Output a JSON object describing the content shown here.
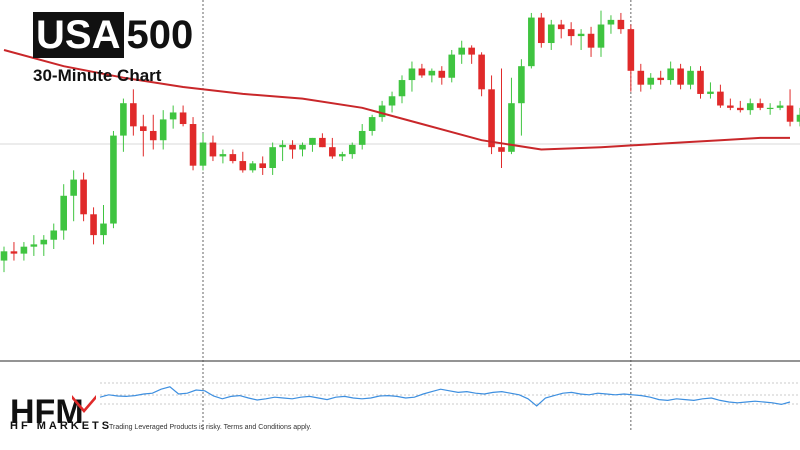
{
  "header": {
    "symbol_boxed": "USA",
    "symbol_rest": "500",
    "subtitle": "30-Minute Chart"
  },
  "footer": {
    "brand_name": "HF MARKETS",
    "logo_text": "HFM",
    "disclaimer": "Trading Leveraged Products is risky. Terms and Conditions apply."
  },
  "colors": {
    "up": "#3fc440",
    "down": "#e02a2a",
    "moving_average": "#c9272a",
    "indicator": "#3d8fe0",
    "grid": "#d9d9d9",
    "separator": "#555555"
  },
  "chart_data": {
    "type": "candlestick",
    "price_range": [
      0,
      100
    ],
    "candles": [
      {
        "o": 10,
        "h": 16,
        "l": 5,
        "c": 14
      },
      {
        "o": 14,
        "h": 18,
        "l": 10,
        "c": 13
      },
      {
        "o": 13,
        "h": 18,
        "l": 10,
        "c": 16
      },
      {
        "o": 16,
        "h": 21,
        "l": 12,
        "c": 17
      },
      {
        "o": 17,
        "h": 21,
        "l": 12,
        "c": 19
      },
      {
        "o": 19,
        "h": 26,
        "l": 15,
        "c": 23
      },
      {
        "o": 23,
        "h": 43,
        "l": 19,
        "c": 38
      },
      {
        "o": 38,
        "h": 49,
        "l": 27,
        "c": 45
      },
      {
        "o": 45,
        "h": 48,
        "l": 27,
        "c": 30
      },
      {
        "o": 30,
        "h": 33,
        "l": 17,
        "c": 21
      },
      {
        "o": 21,
        "h": 34,
        "l": 17,
        "c": 26
      },
      {
        "o": 26,
        "h": 66,
        "l": 24,
        "c": 64
      },
      {
        "o": 64,
        "h": 80,
        "l": 57,
        "c": 78
      },
      {
        "o": 78,
        "h": 84,
        "l": 64,
        "c": 68
      },
      {
        "o": 68,
        "h": 73,
        "l": 55,
        "c": 66
      },
      {
        "o": 66,
        "h": 73,
        "l": 58,
        "c": 62
      },
      {
        "o": 62,
        "h": 75,
        "l": 58,
        "c": 71
      },
      {
        "o": 71,
        "h": 77,
        "l": 67,
        "c": 74
      },
      {
        "o": 74,
        "h": 77,
        "l": 68,
        "c": 69
      },
      {
        "o": 69,
        "h": 72,
        "l": 49,
        "c": 51
      },
      {
        "o": 51,
        "h": 65,
        "l": 49,
        "c": 61
      },
      {
        "o": 61,
        "h": 64,
        "l": 53,
        "c": 55
      },
      {
        "o": 55,
        "h": 58,
        "l": 52,
        "c": 56
      },
      {
        "o": 56,
        "h": 58,
        "l": 52,
        "c": 53
      },
      {
        "o": 53,
        "h": 57,
        "l": 48,
        "c": 49
      },
      {
        "o": 49,
        "h": 53,
        "l": 48,
        "c": 52
      },
      {
        "o": 52,
        "h": 55,
        "l": 47,
        "c": 50
      },
      {
        "o": 50,
        "h": 61,
        "l": 47,
        "c": 59
      },
      {
        "o": 59,
        "h": 62,
        "l": 53,
        "c": 60
      },
      {
        "o": 60,
        "h": 62,
        "l": 54,
        "c": 58
      },
      {
        "o": 58,
        "h": 61,
        "l": 55,
        "c": 60
      },
      {
        "o": 60,
        "h": 63,
        "l": 57,
        "c": 63
      },
      {
        "o": 63,
        "h": 65,
        "l": 59,
        "c": 59
      },
      {
        "o": 59,
        "h": 63,
        "l": 54,
        "c": 55
      },
      {
        "o": 55,
        "h": 57,
        "l": 53,
        "c": 56
      },
      {
        "o": 56,
        "h": 61,
        "l": 54,
        "c": 60
      },
      {
        "o": 60,
        "h": 69,
        "l": 58,
        "c": 66
      },
      {
        "o": 66,
        "h": 73,
        "l": 64,
        "c": 72
      },
      {
        "o": 72,
        "h": 79,
        "l": 70,
        "c": 77
      },
      {
        "o": 77,
        "h": 83,
        "l": 74,
        "c": 81
      },
      {
        "o": 81,
        "h": 90,
        "l": 78,
        "c": 88
      },
      {
        "o": 88,
        "h": 96,
        "l": 83,
        "c": 93
      },
      {
        "o": 93,
        "h": 95,
        "l": 89,
        "c": 90
      },
      {
        "o": 90,
        "h": 93,
        "l": 87,
        "c": 92
      },
      {
        "o": 92,
        "h": 94,
        "l": 86,
        "c": 89
      },
      {
        "o": 89,
        "h": 101,
        "l": 87,
        "c": 99
      },
      {
        "o": 99,
        "h": 105,
        "l": 95,
        "c": 102
      },
      {
        "o": 102,
        "h": 103,
        "l": 95,
        "c": 99
      },
      {
        "o": 99,
        "h": 100,
        "l": 81,
        "c": 84
      },
      {
        "o": 84,
        "h": 90,
        "l": 56,
        "c": 59
      },
      {
        "o": 59,
        "h": 93,
        "l": 50,
        "c": 57
      },
      {
        "o": 57,
        "h": 89,
        "l": 56,
        "c": 78
      },
      {
        "o": 78,
        "h": 97,
        "l": 64,
        "c": 94
      },
      {
        "o": 94,
        "h": 117,
        "l": 93,
        "c": 115
      },
      {
        "o": 115,
        "h": 117,
        "l": 102,
        "c": 104
      },
      {
        "o": 104,
        "h": 114,
        "l": 101,
        "c": 112
      },
      {
        "o": 112,
        "h": 114,
        "l": 106,
        "c": 110
      },
      {
        "o": 110,
        "h": 113,
        "l": 103,
        "c": 107
      },
      {
        "o": 107,
        "h": 110,
        "l": 101,
        "c": 108
      },
      {
        "o": 108,
        "h": 111,
        "l": 98,
        "c": 102
      },
      {
        "o": 102,
        "h": 118,
        "l": 98,
        "c": 112
      },
      {
        "o": 112,
        "h": 116,
        "l": 108,
        "c": 114
      },
      {
        "o": 114,
        "h": 117,
        "l": 108,
        "c": 110
      },
      {
        "o": 110,
        "h": 112,
        "l": 83,
        "c": 92
      },
      {
        "o": 92,
        "h": 95,
        "l": 83,
        "c": 86
      },
      {
        "o": 86,
        "h": 91,
        "l": 84,
        "c": 89
      },
      {
        "o": 89,
        "h": 92,
        "l": 86,
        "c": 88
      },
      {
        "o": 88,
        "h": 96,
        "l": 86,
        "c": 93
      },
      {
        "o": 93,
        "h": 95,
        "l": 84,
        "c": 86
      },
      {
        "o": 86,
        "h": 94,
        "l": 84,
        "c": 92
      },
      {
        "o": 92,
        "h": 94,
        "l": 80,
        "c": 82
      },
      {
        "o": 82,
        "h": 87,
        "l": 80,
        "c": 83
      },
      {
        "o": 83,
        "h": 86,
        "l": 76,
        "c": 77
      },
      {
        "o": 77,
        "h": 80,
        "l": 75,
        "c": 76
      },
      {
        "o": 76,
        "h": 79,
        "l": 74,
        "c": 75
      },
      {
        "o": 75,
        "h": 80,
        "l": 73,
        "c": 78
      },
      {
        "o": 78,
        "h": 80,
        "l": 75,
        "c": 76
      },
      {
        "o": 76,
        "h": 78,
        "l": 73,
        "c": 76
      },
      {
        "o": 76,
        "h": 79,
        "l": 75,
        "c": 77
      },
      {
        "o": 77,
        "h": 84,
        "l": 68,
        "c": 70
      },
      {
        "o": 70,
        "h": 76,
        "l": 68,
        "c": 73
      }
    ],
    "moving_average": [
      {
        "i": 0,
        "v": 101
      },
      {
        "i": 6,
        "v": 94
      },
      {
        "i": 12,
        "v": 89
      },
      {
        "i": 18,
        "v": 85
      },
      {
        "i": 24,
        "v": 82
      },
      {
        "i": 30,
        "v": 80
      },
      {
        "i": 36,
        "v": 76
      },
      {
        "i": 42,
        "v": 69
      },
      {
        "i": 48,
        "v": 62
      },
      {
        "i": 54,
        "v": 58
      },
      {
        "i": 60,
        "v": 59
      },
      {
        "i": 64,
        "v": 60
      },
      {
        "i": 68,
        "v": 61
      },
      {
        "i": 72,
        "v": 62
      },
      {
        "i": 76,
        "v": 63
      },
      {
        "i": 79,
        "v": 63
      }
    ],
    "indicator": [
      52,
      58,
      55,
      54,
      56,
      60,
      62,
      72,
      78,
      60,
      62,
      70,
      68,
      55,
      48,
      54,
      56,
      50,
      45,
      48,
      52,
      50,
      48,
      52,
      54,
      50,
      46,
      52,
      54,
      50,
      48,
      50,
      55,
      56,
      54,
      50,
      52,
      60,
      66,
      72,
      68,
      64,
      66,
      62,
      60,
      64,
      66,
      62,
      58,
      48,
      30,
      50,
      56,
      62,
      64,
      60,
      58,
      62,
      60,
      58,
      60,
      58,
      56,
      52,
      46,
      44,
      48,
      46,
      44,
      48,
      50,
      44,
      40,
      38,
      40,
      42,
      40,
      38,
      34,
      40
    ],
    "indicator_range": [
      0,
      100
    ],
    "vertical_markers": [
      20,
      63
    ]
  }
}
